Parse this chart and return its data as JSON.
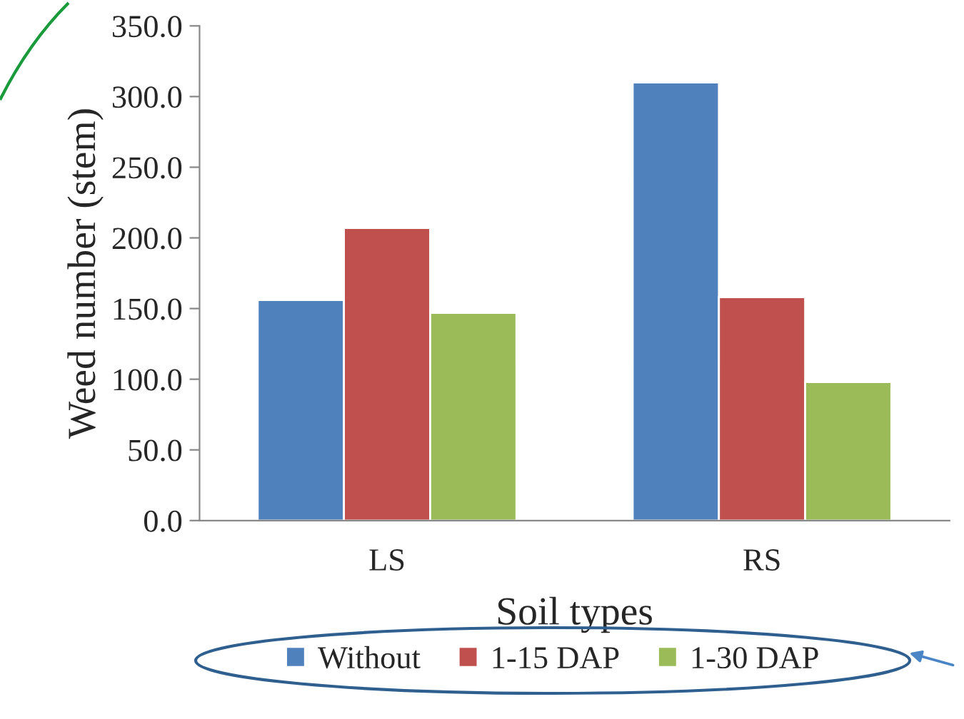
{
  "chart_data": {
    "type": "bar",
    "xlabel": "Soil types",
    "ylabel": "Weed number (stem)",
    "categories": [
      "LS",
      "RS"
    ],
    "series": [
      {
        "name": "Without",
        "color": "#4f81bd",
        "values": [
          156,
          310
        ]
      },
      {
        "name": "1-15 DAP",
        "color": "#c0504d",
        "values": [
          207,
          158
        ]
      },
      {
        "name": "1-30 DAP",
        "color": "#9bbb59",
        "values": [
          147,
          98
        ]
      }
    ],
    "ylim": [
      0,
      350
    ],
    "yticks": [
      {
        "value": 0,
        "label": "0.0"
      },
      {
        "value": 50,
        "label": "50.0"
      },
      {
        "value": 100,
        "label": "100.0"
      },
      {
        "value": 150,
        "label": "150.0"
      },
      {
        "value": 200,
        "label": "200.0"
      },
      {
        "value": 250,
        "label": "250.0"
      },
      {
        "value": 300,
        "label": "300.0"
      },
      {
        "value": 350,
        "label": "350.0"
      }
    ],
    "grid": false,
    "legend": "bottom"
  }
}
